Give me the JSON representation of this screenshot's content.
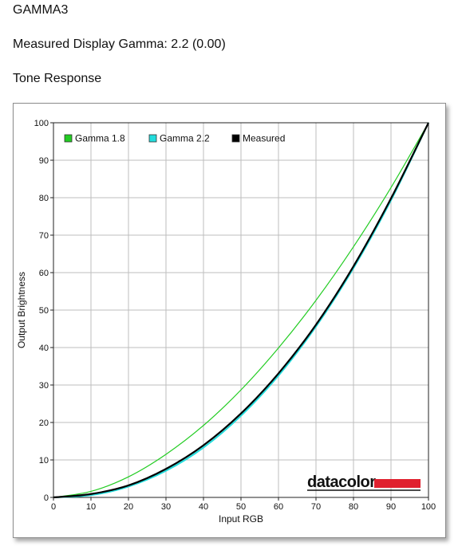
{
  "header": {
    "profile_name": "GAMMA3",
    "measured_gamma": "Measured Display Gamma: 2.2 (0.00)",
    "section_title": "Tone Response"
  },
  "logo": {
    "text": "datacolor",
    "bar_color": "#e0202e"
  },
  "chart_data": {
    "type": "line",
    "title": "",
    "xlabel": "Input RGB",
    "ylabel": "Output Brightness",
    "xlim": [
      0,
      100
    ],
    "ylim": [
      0,
      100
    ],
    "x_ticks": [
      0,
      10,
      20,
      30,
      40,
      50,
      60,
      70,
      80,
      90,
      100
    ],
    "y_ticks": [
      0,
      10,
      20,
      30,
      40,
      50,
      60,
      70,
      80,
      90,
      100
    ],
    "x_tick_labels": [
      "0",
      "10",
      "20",
      "30",
      "40",
      "50",
      "60",
      "70",
      "80",
      "90",
      "100"
    ],
    "y_tick_labels": [
      "0",
      "10",
      "20",
      "30",
      "40",
      "50",
      "60",
      "70",
      "80",
      "90",
      "100"
    ],
    "grid": true,
    "legend_position": "top-left",
    "x": [
      0,
      10,
      20,
      30,
      40,
      50,
      60,
      70,
      80,
      90,
      100
    ],
    "series": [
      {
        "name": "Gamma 1.8",
        "color": "#22cc22",
        "values": [
          0,
          1.6,
          5.5,
          11.5,
          19.2,
          28.7,
          39.9,
          52.6,
          66.9,
          82.7,
          100
        ]
      },
      {
        "name": "Gamma 2.2",
        "color": "#22dddd",
        "values": [
          0,
          0.6,
          2.9,
          7.1,
          13.3,
          21.8,
          32.5,
          45.6,
          61.2,
          79.3,
          100
        ]
      },
      {
        "name": "Measured",
        "color": "#000000",
        "values": [
          0,
          0.9,
          3.2,
          7.6,
          13.9,
          22.4,
          33.1,
          46.1,
          61.7,
          79.8,
          100
        ]
      }
    ]
  }
}
